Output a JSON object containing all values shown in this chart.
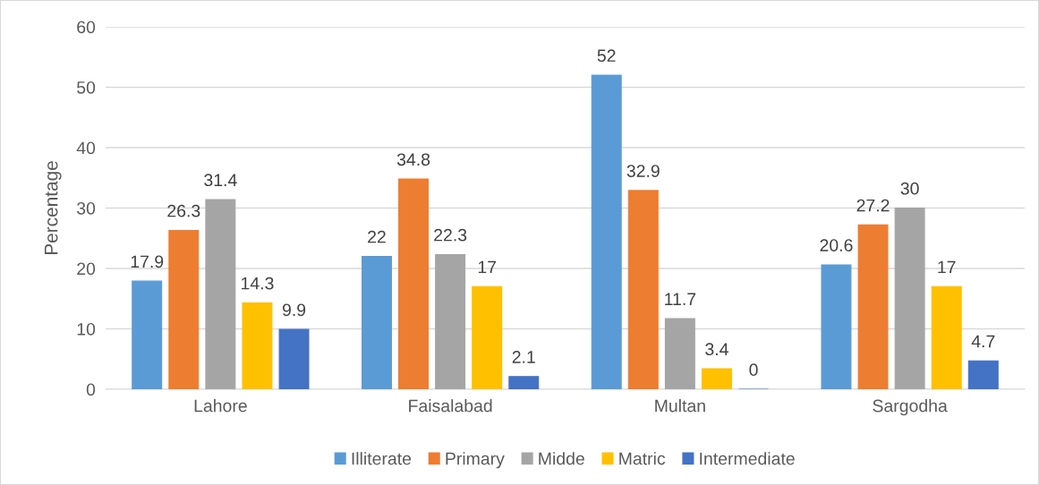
{
  "chart_data": {
    "type": "bar",
    "ylabel": "Percentage",
    "categories": [
      "Lahore",
      "Faisalabad",
      "Multan",
      "Sargodha"
    ],
    "series": [
      {
        "name": "Illiterate",
        "color": "#5b9bd5",
        "values": [
          17.9,
          22,
          52,
          20.6
        ]
      },
      {
        "name": "Primary",
        "color": "#ed7d31",
        "values": [
          26.3,
          34.8,
          32.9,
          27.2
        ]
      },
      {
        "name": "Midde",
        "color": "#a5a5a5",
        "values": [
          31.4,
          22.3,
          11.7,
          30
        ]
      },
      {
        "name": "Matric",
        "color": "#ffc000",
        "values": [
          14.3,
          17,
          3.4,
          17
        ]
      },
      {
        "name": "Intermediate",
        "color": "#4472c4",
        "values": [
          9.9,
          2.1,
          0,
          4.7
        ]
      }
    ],
    "ylim": [
      0,
      60
    ],
    "yticks": [
      0,
      10,
      20,
      30,
      40,
      50,
      60
    ],
    "grid": "y",
    "legend": "bottom",
    "data_labels": true
  }
}
